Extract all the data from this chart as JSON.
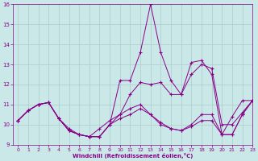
{
  "xlabel": "Windchill (Refroidissement éolien,°C)",
  "background_color": "#cbe8e8",
  "line_color": "#880088",
  "grid_color": "#aacccc",
  "xlim": [
    -0.5,
    23
  ],
  "ylim": [
    9,
    16
  ],
  "yticks": [
    9,
    10,
    11,
    12,
    13,
    14,
    15,
    16
  ],
  "xticks": [
    0,
    1,
    2,
    3,
    4,
    5,
    6,
    7,
    8,
    9,
    10,
    11,
    12,
    13,
    14,
    15,
    16,
    17,
    18,
    19,
    20,
    21,
    22,
    23
  ],
  "series": [
    [
      10.2,
      10.7,
      11.0,
      11.1,
      10.3,
      9.7,
      9.5,
      9.4,
      9.4,
      10.0,
      12.2,
      12.2,
      13.6,
      16.0,
      13.6,
      12.2,
      11.5,
      13.1,
      13.2,
      12.5,
      9.5,
      10.4,
      11.2,
      11.2
    ],
    [
      10.2,
      10.7,
      11.0,
      11.1,
      10.3,
      9.7,
      9.5,
      9.4,
      9.4,
      10.0,
      10.5,
      11.5,
      12.1,
      12.0,
      12.1,
      11.5,
      11.5,
      12.5,
      13.0,
      12.8,
      10.0,
      10.0,
      10.6,
      11.2
    ],
    [
      10.2,
      10.7,
      11.0,
      11.1,
      10.3,
      9.8,
      9.5,
      9.4,
      9.8,
      10.2,
      10.5,
      10.8,
      11.0,
      10.5,
      10.0,
      9.8,
      9.7,
      10.0,
      10.5,
      10.5,
      9.5,
      9.5,
      10.5,
      11.2
    ],
    [
      10.2,
      10.7,
      11.0,
      11.1,
      10.3,
      9.7,
      9.5,
      9.4,
      9.4,
      10.0,
      10.3,
      10.5,
      10.8,
      10.5,
      10.1,
      9.8,
      9.7,
      9.9,
      10.2,
      10.2,
      9.5,
      9.5,
      10.5,
      11.2
    ]
  ]
}
